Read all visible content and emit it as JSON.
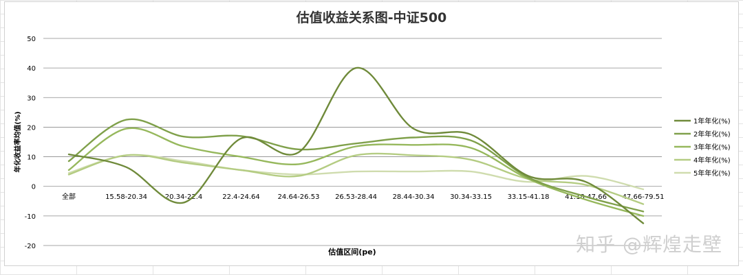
{
  "chart_data": {
    "type": "line",
    "title": "估值收益关系图-中证500",
    "xlabel": "估值区间(pe)",
    "ylabel": "年化收益率均值(%)",
    "ylim": [
      -20,
      50
    ],
    "yticks": [
      -20,
      -10,
      0,
      10,
      20,
      30,
      40,
      50
    ],
    "categories": [
      "全部",
      "15.58-20.34",
      "20.34-22.4",
      "22.4-24.64",
      "24.64-26.53",
      "26.53-28.44",
      "28.44-30.34",
      "30.34-33.15",
      "33.15-41.18",
      "41.18-47.66",
      "47.66-79.51"
    ],
    "grid": true,
    "smooth": true,
    "legend_position": "right",
    "series": [
      {
        "name": "1年年化(%)",
        "color": "#6f8a3a",
        "values": [
          10.8,
          6.5,
          -5.5,
          16.2,
          11.5,
          40.0,
          19.5,
          17.5,
          3.5,
          1.5,
          -12.5
        ]
      },
      {
        "name": "2年年化(%)",
        "color": "#7fa04a",
        "values": [
          8.5,
          22.5,
          16.8,
          17.0,
          12.5,
          14.5,
          16.5,
          15.5,
          3.0,
          -3.5,
          -8.5
        ]
      },
      {
        "name": "3年年化(%)",
        "color": "#96b85c",
        "values": [
          5.5,
          19.5,
          13.5,
          10.0,
          7.5,
          13.5,
          14.0,
          13.0,
          2.5,
          -4.5,
          -10.0
        ]
      },
      {
        "name": "4年年化(%)",
        "color": "#b4cc82",
        "values": [
          4.0,
          10.5,
          8.0,
          5.5,
          3.5,
          10.5,
          10.5,
          9.0,
          2.5,
          0.5,
          -6.0
        ]
      },
      {
        "name": "5年年化(%)",
        "color": "#cfdcae",
        "values": [
          4.5,
          10.5,
          8.5,
          5.5,
          4.0,
          5.0,
          5.0,
          5.0,
          1.5,
          3.5,
          -1.0
        ]
      }
    ]
  },
  "watermark": "知乎 @辉煌走壁"
}
